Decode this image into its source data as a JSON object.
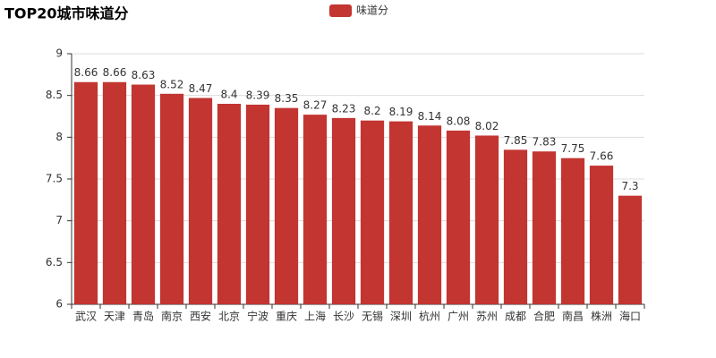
{
  "chart_data": {
    "type": "bar",
    "title": "TOP20城市味道分",
    "categories": [
      "武汉",
      "天津",
      "青岛",
      "南京",
      "西安",
      "北京",
      "宁波",
      "重庆",
      "上海",
      "长沙",
      "无锡",
      "深圳",
      "杭州",
      "广州",
      "苏州",
      "成都",
      "合肥",
      "南昌",
      "株洲",
      "海口"
    ],
    "series": [
      {
        "name": "味道分",
        "color": "#c23531",
        "values": [
          8.66,
          8.66,
          8.63,
          8.52,
          8.47,
          8.4,
          8.39,
          8.35,
          8.27,
          8.23,
          8.2,
          8.19,
          8.14,
          8.08,
          8.02,
          7.85,
          7.83,
          7.75,
          7.66,
          7.3
        ]
      }
    ],
    "ylim": [
      6,
      9
    ],
    "yticks": [
      6,
      6.5,
      7,
      7.5,
      8,
      8.5,
      9
    ],
    "grid": true,
    "legend": "top"
  }
}
